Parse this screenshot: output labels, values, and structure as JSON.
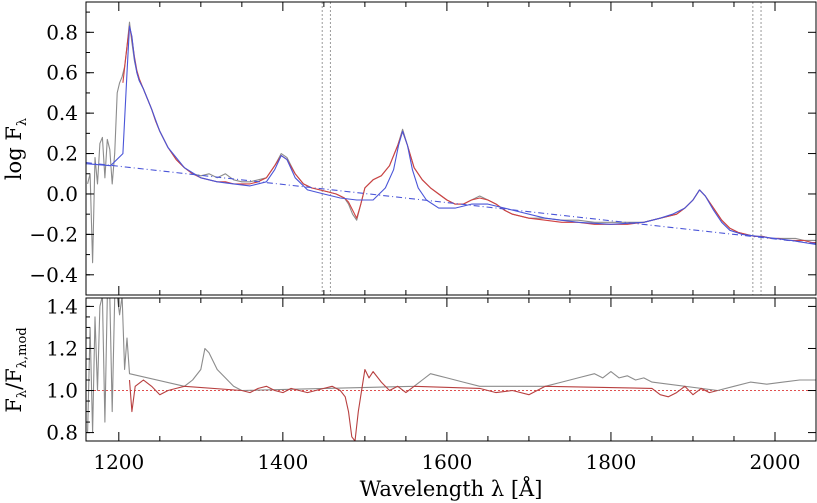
{
  "chart_data": [
    {
      "type": "line",
      "panel": "top",
      "ylabel": "log F",
      "ylabel_sub": "λ",
      "xlim": [
        1160,
        2050
      ],
      "ylim": [
        -0.5,
        0.95
      ],
      "y_ticks": [
        "−0.4",
        "−0.2",
        "0.0",
        "0.2",
        "0.4",
        "0.6",
        "0.8"
      ],
      "y_tick_values": [
        -0.4,
        -0.2,
        0.0,
        0.2,
        0.4,
        0.6,
        0.8
      ],
      "x_tick_values": [
        1200,
        1400,
        1600,
        1800,
        2000
      ],
      "vlines_dotted": [
        1448,
        1458,
        1973,
        1983
      ],
      "series": [
        {
          "role": "observed spectrum",
          "color": "#8c8c8c",
          "x": [
            1162,
            1165,
            1168,
            1171,
            1174,
            1177,
            1180,
            1183,
            1186,
            1189,
            1192,
            1195,
            1198,
            1201,
            1204,
            1207,
            1210,
            1213,
            1216,
            1219,
            1222,
            1225,
            1230,
            1235,
            1240,
            1245,
            1250,
            1255,
            1260,
            1270,
            1280,
            1290,
            1300,
            1310,
            1320,
            1330,
            1340,
            1350,
            1360,
            1370,
            1380,
            1390,
            1398,
            1405,
            1415,
            1425,
            1435,
            1445,
            1455,
            1465,
            1475,
            1480,
            1485,
            1490,
            1495,
            1500,
            1510,
            1520,
            1530,
            1540,
            1546,
            1552,
            1560,
            1570,
            1580,
            1590,
            1600,
            1610,
            1620,
            1630,
            1640,
            1650,
            1660,
            1670,
            1680,
            1690,
            1700,
            1720,
            1740,
            1760,
            1780,
            1800,
            1820,
            1840,
            1860,
            1870,
            1880,
            1890,
            1900,
            1908,
            1915,
            1925,
            1935,
            1945,
            1955,
            1965,
            1975,
            1985,
            1995,
            2005,
            2015,
            2025,
            2035,
            2045,
            2050
          ],
          "y": [
            0.05,
            0.1,
            -0.34,
            0.18,
            0.05,
            0.25,
            0.28,
            0.08,
            0.27,
            0.22,
            0.05,
            0.2,
            0.5,
            0.55,
            0.58,
            0.63,
            0.73,
            0.85,
            0.75,
            0.66,
            0.6,
            0.56,
            0.52,
            0.47,
            0.42,
            0.36,
            0.31,
            0.27,
            0.23,
            0.17,
            0.13,
            0.1,
            0.09,
            0.1,
            0.08,
            0.1,
            0.07,
            0.06,
            0.06,
            0.07,
            0.08,
            0.14,
            0.2,
            0.18,
            0.1,
            0.05,
            0.03,
            0.02,
            0.01,
            0.0,
            -0.02,
            -0.05,
            -0.1,
            -0.13,
            -0.05,
            0.03,
            0.07,
            0.09,
            0.14,
            0.24,
            0.32,
            0.24,
            0.13,
            0.07,
            0.03,
            0.0,
            -0.03,
            -0.05,
            -0.05,
            -0.03,
            -0.01,
            -0.03,
            -0.05,
            -0.08,
            -0.1,
            -0.11,
            -0.12,
            -0.12,
            -0.13,
            -0.13,
            -0.14,
            -0.14,
            -0.14,
            -0.14,
            -0.12,
            -0.11,
            -0.1,
            -0.07,
            -0.03,
            0.02,
            -0.01,
            -0.07,
            -0.13,
            -0.17,
            -0.19,
            -0.2,
            -0.21,
            -0.21,
            -0.22,
            -0.22,
            -0.22,
            -0.22,
            -0.23,
            -0.23,
            -0.23
          ]
        },
        {
          "role": "model fit",
          "color": "#d04040",
          "x": [
            1205,
            1210,
            1213,
            1216,
            1219,
            1222,
            1225,
            1230,
            1235,
            1240,
            1245,
            1250,
            1255,
            1260,
            1270,
            1280,
            1290,
            1300,
            1310,
            1320,
            1330,
            1340,
            1350,
            1360,
            1370,
            1380,
            1390,
            1398,
            1405,
            1415,
            1425,
            1435,
            1445,
            1455,
            1465,
            1475,
            1480,
            1485,
            1490,
            1495,
            1500,
            1510,
            1520,
            1530,
            1540,
            1546,
            1552,
            1560,
            1570,
            1580,
            1590,
            1600,
            1610,
            1620,
            1630,
            1640,
            1650,
            1660,
            1670,
            1680,
            1690,
            1700,
            1720,
            1740,
            1760,
            1780,
            1800,
            1820,
            1840,
            1860,
            1870,
            1880,
            1890,
            1900,
            1908,
            1915,
            1925,
            1935,
            1945,
            1955,
            1965,
            1975,
            1985,
            1995,
            2005,
            2015,
            2025,
            2035,
            2045,
            2050
          ],
          "y": [
            0.55,
            0.73,
            0.83,
            0.77,
            0.68,
            0.61,
            0.57,
            0.52,
            0.47,
            0.42,
            0.36,
            0.31,
            0.27,
            0.23,
            0.17,
            0.13,
            0.1,
            0.08,
            0.07,
            0.06,
            0.06,
            0.05,
            0.05,
            0.05,
            0.06,
            0.08,
            0.14,
            0.19,
            0.17,
            0.1,
            0.05,
            0.03,
            0.02,
            0.01,
            0.0,
            -0.02,
            -0.04,
            -0.08,
            -0.12,
            -0.05,
            0.03,
            0.07,
            0.09,
            0.14,
            0.24,
            0.31,
            0.24,
            0.13,
            0.07,
            0.03,
            0.0,
            -0.03,
            -0.05,
            -0.05,
            -0.03,
            -0.02,
            -0.03,
            -0.05,
            -0.08,
            -0.1,
            -0.11,
            -0.12,
            -0.13,
            -0.14,
            -0.14,
            -0.15,
            -0.15,
            -0.15,
            -0.14,
            -0.12,
            -0.11,
            -0.1,
            -0.07,
            -0.03,
            0.02,
            -0.01,
            -0.07,
            -0.13,
            -0.17,
            -0.19,
            -0.2,
            -0.21,
            -0.21,
            -0.22,
            -0.22,
            -0.23,
            -0.23,
            -0.23,
            -0.24,
            -0.24
          ]
        },
        {
          "role": "model (solid)",
          "color": "#4a55d8",
          "x": [
            1160,
            1190,
            1205,
            1210,
            1213,
            1216,
            1219,
            1222,
            1225,
            1230,
            1240,
            1250,
            1260,
            1280,
            1300,
            1320,
            1340,
            1360,
            1380,
            1390,
            1398,
            1405,
            1415,
            1430,
            1450,
            1470,
            1490,
            1510,
            1525,
            1535,
            1541,
            1546,
            1552,
            1558,
            1565,
            1575,
            1590,
            1610,
            1630,
            1650,
            1680,
            1720,
            1760,
            1800,
            1840,
            1860,
            1875,
            1890,
            1900,
            1908,
            1915,
            1925,
            1935,
            1945,
            1960,
            1980,
            2000,
            2020,
            2050
          ],
          "y": [
            0.15,
            0.14,
            0.2,
            0.6,
            0.83,
            0.78,
            0.67,
            0.6,
            0.56,
            0.52,
            0.42,
            0.31,
            0.23,
            0.13,
            0.08,
            0.06,
            0.05,
            0.04,
            0.06,
            0.12,
            0.19,
            0.17,
            0.08,
            0.02,
            0.0,
            -0.02,
            -0.03,
            -0.03,
            0.03,
            0.12,
            0.24,
            0.31,
            0.24,
            0.12,
            0.03,
            -0.03,
            -0.07,
            -0.07,
            -0.05,
            -0.05,
            -0.08,
            -0.12,
            -0.14,
            -0.15,
            -0.14,
            -0.12,
            -0.1,
            -0.07,
            -0.03,
            0.02,
            -0.01,
            -0.08,
            -0.14,
            -0.18,
            -0.2,
            -0.21,
            -0.22,
            -0.23,
            -0.25
          ]
        },
        {
          "role": "continuum",
          "color": "#4a55d8",
          "dash": "dash-dot",
          "x": [
            1160,
            2050
          ],
          "y": [
            0.155,
            -0.245
          ]
        }
      ]
    },
    {
      "type": "line",
      "panel": "bottom",
      "ylabel": "F",
      "ylabel_sub": "λ",
      "ylabel_mid": "/F",
      "ylabel_sub2": "λ,mod",
      "xlabel": "Wavelength λ [Å]",
      "xlim": [
        1160,
        2050
      ],
      "ylim": [
        0.76,
        1.44
      ],
      "y_ticks": [
        "0.8",
        "1.0",
        "1.2",
        "1.4"
      ],
      "y_tick_values": [
        0.8,
        1.0,
        1.2,
        1.4
      ],
      "x_ticks": [
        "1200",
        "1400",
        "1600",
        "1800",
        "2000"
      ],
      "x_tick_values": [
        1200,
        1400,
        1600,
        1800,
        2000
      ],
      "hline_dotted": 1.0,
      "series": [
        {
          "role": "ratio (excluded regions)",
          "color": "#8c8c8c",
          "x": [
            1162,
            1165,
            1168,
            1171,
            1174,
            1177,
            1180,
            1183,
            1186,
            1189,
            1192,
            1195,
            1198,
            1201,
            1204,
            1207,
            1210,
            1213,
            1280,
            1290,
            1300,
            1305,
            1310,
            1315,
            1320,
            1330,
            1340,
            1350,
            1560,
            1570,
            1580,
            1590,
            1600,
            1610,
            1620,
            1640,
            1720,
            1740,
            1760,
            1780,
            1790,
            1800,
            1810,
            1820,
            1830,
            1840,
            1850,
            1930,
            1950,
            1970,
            1990,
            2010,
            2030,
            2050
          ],
          "y": [
            0.8,
            1.3,
            0.8,
            1.35,
            1.0,
            1.4,
            1.45,
            0.85,
            1.44,
            1.45,
            0.9,
            1.44,
            1.45,
            1.36,
            1.45,
            1.1,
            1.25,
            1.08,
            1.02,
            1.05,
            1.1,
            1.2,
            1.18,
            1.14,
            1.1,
            1.06,
            1.02,
            1.0,
            1.02,
            1.05,
            1.08,
            1.07,
            1.06,
            1.05,
            1.04,
            1.02,
            1.02,
            1.04,
            1.06,
            1.08,
            1.06,
            1.09,
            1.06,
            1.07,
            1.05,
            1.06,
            1.04,
            1.0,
            1.02,
            1.04,
            1.03,
            1.04,
            1.05,
            1.05
          ]
        },
        {
          "role": "ratio (fit regions)",
          "color": "#b84040",
          "x": [
            1213,
            1216,
            1220,
            1230,
            1240,
            1250,
            1260,
            1270,
            1280,
            1350,
            1360,
            1370,
            1380,
            1390,
            1400,
            1410,
            1420,
            1430,
            1440,
            1450,
            1460,
            1470,
            1476,
            1480,
            1484,
            1488,
            1492,
            1496,
            1500,
            1505,
            1510,
            1520,
            1530,
            1540,
            1550,
            1560,
            1640,
            1660,
            1680,
            1700,
            1720,
            1850,
            1860,
            1870,
            1880,
            1890,
            1900,
            1910,
            1920,
            1930
          ],
          "y": [
            1.05,
            0.9,
            1.02,
            1.05,
            1.02,
            0.98,
            1.0,
            1.01,
            1.02,
            1.0,
            0.99,
            1.01,
            1.02,
            1.0,
            0.99,
            1.01,
            1.0,
            0.99,
            1.0,
            1.01,
            1.02,
            1.0,
            0.97,
            0.9,
            0.78,
            0.76,
            0.9,
            1.0,
            1.1,
            1.06,
            1.09,
            1.04,
            1.0,
            1.02,
            0.99,
            1.02,
            1.01,
            0.99,
            1.0,
            0.98,
            1.02,
            1.01,
            0.98,
            0.97,
            0.99,
            1.02,
            0.98,
            1.01,
            0.99,
            1.0
          ]
        }
      ]
    }
  ]
}
